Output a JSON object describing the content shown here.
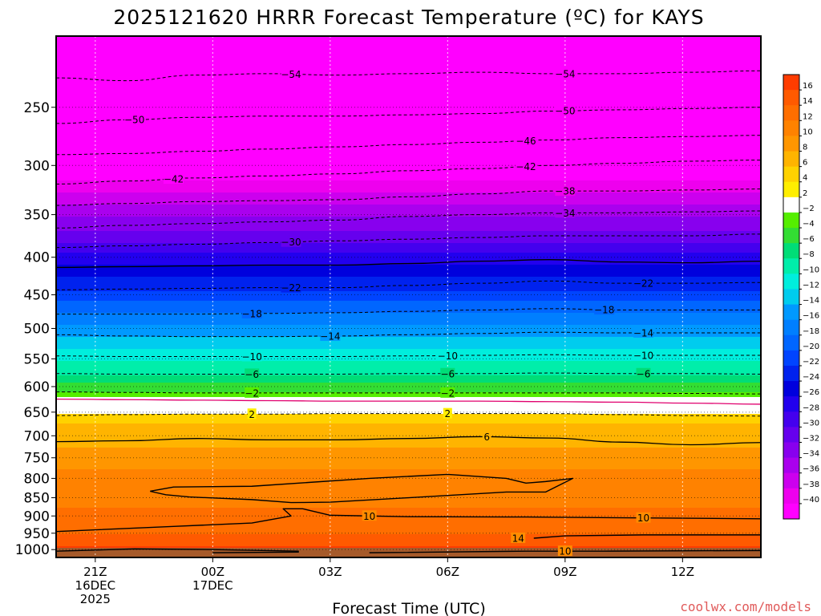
{
  "chart_data": {
    "type": "heatmap",
    "title": "2025121620 HRRR Forecast Temperature (ºC) for KAYS",
    "xlabel": "Forecast Time (UTC)",
    "ylabel": "",
    "x_ticks": [
      {
        "hour": 1,
        "lines": [
          "21Z",
          "16DEC",
          "2025"
        ]
      },
      {
        "hour": 4,
        "lines": [
          "00Z",
          "17DEC"
        ]
      },
      {
        "hour": 7,
        "lines": [
          "03Z"
        ]
      },
      {
        "hour": 10,
        "lines": [
          "06Z"
        ]
      },
      {
        "hour": 13,
        "lines": [
          "09Z"
        ]
      },
      {
        "hour": 16,
        "lines": [
          "12Z"
        ]
      }
    ],
    "xlim": [
      0,
      18
    ],
    "y_ticks": [
      250,
      300,
      350,
      400,
      450,
      500,
      550,
      600,
      650,
      700,
      750,
      800,
      850,
      900,
      950,
      1000
    ],
    "ylim_hpa": [
      1025,
      200
    ],
    "y_scale": "log",
    "grid": "dotted",
    "colorbar": {
      "tick_labels": [
        "16",
        "14",
        "12",
        "10",
        "8",
        "6",
        "4",
        "2",
        "−2",
        "−4",
        "−6",
        "−8",
        "−10",
        "−12",
        "−14",
        "−16",
        "−18",
        "−20",
        "−22",
        "−24",
        "−26",
        "−28",
        "−30",
        "−32",
        "−34",
        "−36",
        "−38",
        "−40"
      ],
      "colors": [
        "#ff3c00",
        "#ff5a00",
        "#ff6e00",
        "#ff8200",
        "#ff9600",
        "#ffb400",
        "#ffd200",
        "#ffee00",
        "#ffffff",
        "#55ee00",
        "#33dd33",
        "#00dd77",
        "#00eeaa",
        "#00eedd",
        "#00ccee",
        "#0099ff",
        "#007fff",
        "#0066ff",
        "#0044ff",
        "#0022ee",
        "#0000dd",
        "#2200ee",
        "#4400ee",
        "#6600ee",
        "#8800ee",
        "#aa00ee",
        "#cc00ee",
        "#ee00ee",
        "#ff00ff"
      ]
    },
    "temperature_profile": [
      {
        "p": 1015,
        "t": 17
      },
      {
        "p": 1000,
        "t": 15
      },
      {
        "p": 975,
        "t": 13
      },
      {
        "p": 950,
        "t": 12
      },
      {
        "p": 925,
        "t": 11
      },
      {
        "p": 900,
        "t": 10.5
      },
      {
        "p": 875,
        "t": 10
      },
      {
        "p": 850,
        "t": 9.5
      },
      {
        "p": 825,
        "t": 9.5
      },
      {
        "p": 800,
        "t": 9
      },
      {
        "p": 775,
        "t": 8
      },
      {
        "p": 750,
        "t": 7
      },
      {
        "p": 725,
        "t": 6
      },
      {
        "p": 700,
        "t": 5.5
      },
      {
        "p": 675,
        "t": 4.5
      },
      {
        "p": 650,
        "t": 2
      },
      {
        "p": 625,
        "t": -1
      },
      {
        "p": 600,
        "t": -5
      },
      {
        "p": 575,
        "t": -8
      },
      {
        "p": 550,
        "t": -10
      },
      {
        "p": 525,
        "t": -12.5
      },
      {
        "p": 500,
        "t": -15
      },
      {
        "p": 475,
        "t": -18
      },
      {
        "p": 450,
        "t": -21
      },
      {
        "p": 425,
        "t": -24
      },
      {
        "p": 400,
        "t": -27
      },
      {
        "p": 375,
        "t": -31
      },
      {
        "p": 350,
        "t": -34
      },
      {
        "p": 325,
        "t": -38
      },
      {
        "p": 300,
        "t": -42
      },
      {
        "p": 275,
        "t": -46
      },
      {
        "p": 250,
        "t": -50
      },
      {
        "p": 225,
        "t": -54
      },
      {
        "p": 200,
        "t": -57
      }
    ],
    "contours": [
      {
        "value": -54,
        "label": "−54",
        "dashed": true,
        "pressures": [
          228,
          230,
          226,
          225,
          226,
          225,
          224,
          225,
          225,
          224,
          223
        ],
        "labels_at_hours": [
          6,
          13
        ]
      },
      {
        "value": -50,
        "label": "−50",
        "dashed": true,
        "pressures": [
          263,
          260,
          258,
          257,
          257,
          256,
          255,
          253,
          252,
          251,
          250
        ],
        "labels_at_hours": [
          2,
          13
        ]
      },
      {
        "value": -46,
        "label": "−46",
        "dashed": true,
        "pressures": [
          290,
          289,
          287,
          285,
          283,
          281,
          279,
          277,
          275,
          274,
          273
        ],
        "labels_at_hours": [
          12
        ]
      },
      {
        "value": -42,
        "label": "−42",
        "dashed": true,
        "pressures": [
          318,
          315,
          312,
          310,
          308,
          305,
          303,
          300,
          298,
          296,
          295
        ],
        "labels_at_hours": [
          3,
          12
        ]
      },
      {
        "value": -38,
        "label": "−38",
        "dashed": true,
        "pressures": [
          340,
          338,
          336,
          335,
          334,
          331,
          328,
          325,
          325,
          324,
          323
        ],
        "labels_at_hours": [
          13
        ]
      },
      {
        "value": -34,
        "label": "−34",
        "dashed": true,
        "pressures": [
          365,
          362,
          360,
          358,
          356,
          352,
          350,
          348,
          348,
          347,
          346
        ],
        "labels_at_hours": [
          13
        ]
      },
      {
        "value": -30,
        "label": "−30",
        "dashed": true,
        "pressures": [
          388,
          386,
          384,
          382,
          380,
          378,
          376,
          374,
          374,
          374,
          372
        ],
        "labels_at_hours": [
          6
        ]
      },
      {
        "value": -26,
        "label": "",
        "dashed": false,
        "pressures": [
          413,
          412,
          411,
          410,
          410,
          408,
          405,
          403,
          406,
          407,
          405
        ],
        "labels_at_hours": []
      },
      {
        "value": -22,
        "label": "−22",
        "dashed": true,
        "pressures": [
          443,
          442,
          441,
          440,
          440,
          437,
          434,
          431,
          434,
          434,
          433
        ],
        "labels_at_hours": [
          6,
          15
        ]
      },
      {
        "value": -18,
        "label": "−18",
        "dashed": true,
        "pressures": [
          478,
          478,
          478,
          477,
          476,
          474,
          472,
          470,
          472,
          472,
          472
        ],
        "labels_at_hours": [
          5,
          14
        ]
      },
      {
        "value": -14,
        "label": "−14",
        "dashed": true,
        "pressures": [
          510,
          512,
          513,
          513,
          512,
          510,
          508,
          506,
          507,
          507,
          507
        ],
        "labels_at_hours": [
          7,
          15
        ]
      },
      {
        "value": -10,
        "label": "−10",
        "dashed": true,
        "pressures": [
          545,
          546,
          546,
          546,
          546,
          545,
          544,
          543,
          544,
          544,
          544
        ],
        "labels_at_hours": [
          5,
          10,
          15
        ]
      },
      {
        "value": -6,
        "label": "−6",
        "dashed": true,
        "pressures": [
          576,
          577,
          577,
          577,
          577,
          576,
          576,
          575,
          576,
          576,
          577
        ],
        "labels_at_hours": [
          5,
          10,
          15
        ]
      },
      {
        "value": -2,
        "label": "−2",
        "dashed": true,
        "pressures": [
          610,
          611,
          612,
          612,
          612,
          612,
          612,
          612,
          612,
          613,
          614
        ],
        "labels_at_hours": [
          5,
          10
        ]
      },
      {
        "value": 0,
        "label": "",
        "dashed": false,
        "color": "#e0006e",
        "pressures": [
          624,
          625,
          626,
          627,
          628,
          628,
          628,
          629,
          630,
          632,
          634
        ],
        "labels_at_hours": []
      },
      {
        "value": 2,
        "label": "2",
        "dashed": true,
        "pressures": [
          657,
          655,
          654,
          654,
          653,
          653,
          653,
          653,
          655,
          657,
          658
        ],
        "labels_at_hours": [
          5,
          10
        ]
      },
      {
        "value": 6,
        "label": "6",
        "dashed": false,
        "pressures": [
          713,
          711,
          706,
          709,
          709,
          706,
          702,
          705,
          714,
          720,
          715
        ],
        "labels_at_hours": [
          11
        ]
      }
    ],
    "contour_paths_10": [
      {
        "points": [
          [
            2.4,
            833
          ],
          [
            3.0,
            822
          ],
          [
            5.0,
            820
          ],
          [
            8.0,
            800
          ],
          [
            10.0,
            790
          ],
          [
            11.5,
            800
          ],
          [
            12.0,
            812
          ],
          [
            12.5,
            808
          ],
          [
            13.2,
            800
          ],
          [
            12.5,
            835
          ],
          [
            11.5,
            835
          ],
          [
            9.0,
            850
          ],
          [
            7.0,
            862
          ],
          [
            6.0,
            863
          ],
          [
            5.0,
            855
          ],
          [
            3.4,
            848
          ],
          [
            2.8,
            842
          ],
          [
            2.4,
            833
          ]
        ]
      },
      {
        "points": [
          [
            0,
            945
          ],
          [
            3.0,
            930
          ],
          [
            5.0,
            920
          ],
          [
            6.0,
            900
          ],
          [
            5.8,
            880
          ],
          [
            6.3,
            880
          ],
          [
            7.0,
            898
          ],
          [
            9.0,
            902
          ],
          [
            12.0,
            903
          ],
          [
            18.0,
            908
          ]
        ],
        "labels_at_hours": [
          8,
          15
        ]
      }
    ],
    "contour_paths_14": [
      {
        "points": [
          [
            12.2,
            965
          ],
          [
            13.0,
            958
          ],
          [
            15.0,
            955
          ],
          [
            18.0,
            955
          ]
        ],
        "labels_at_hours": [
          11.8
        ]
      },
      {
        "points": [
          [
            0,
            1005
          ],
          [
            2.0,
            998
          ],
          [
            4.0,
            1000
          ],
          [
            6.2,
            1005
          ]
        ]
      },
      {
        "points": [
          [
            4.0,
            1010
          ],
          [
            6.2,
            1008
          ]
        ]
      }
    ],
    "contour_paths_18": [
      {
        "points": [
          [
            8.0,
            1010
          ],
          [
            12.0,
            1005
          ],
          [
            14.0,
            1005
          ],
          [
            18.0,
            1003
          ]
        ],
        "labels_at_hours": [
          13
        ]
      }
    ]
  },
  "credit": "coolwx.com/models",
  "colors": {
    "credit": "#e05a5a",
    "ground": "#a65a2a",
    "dashed_contour": "#000000"
  }
}
